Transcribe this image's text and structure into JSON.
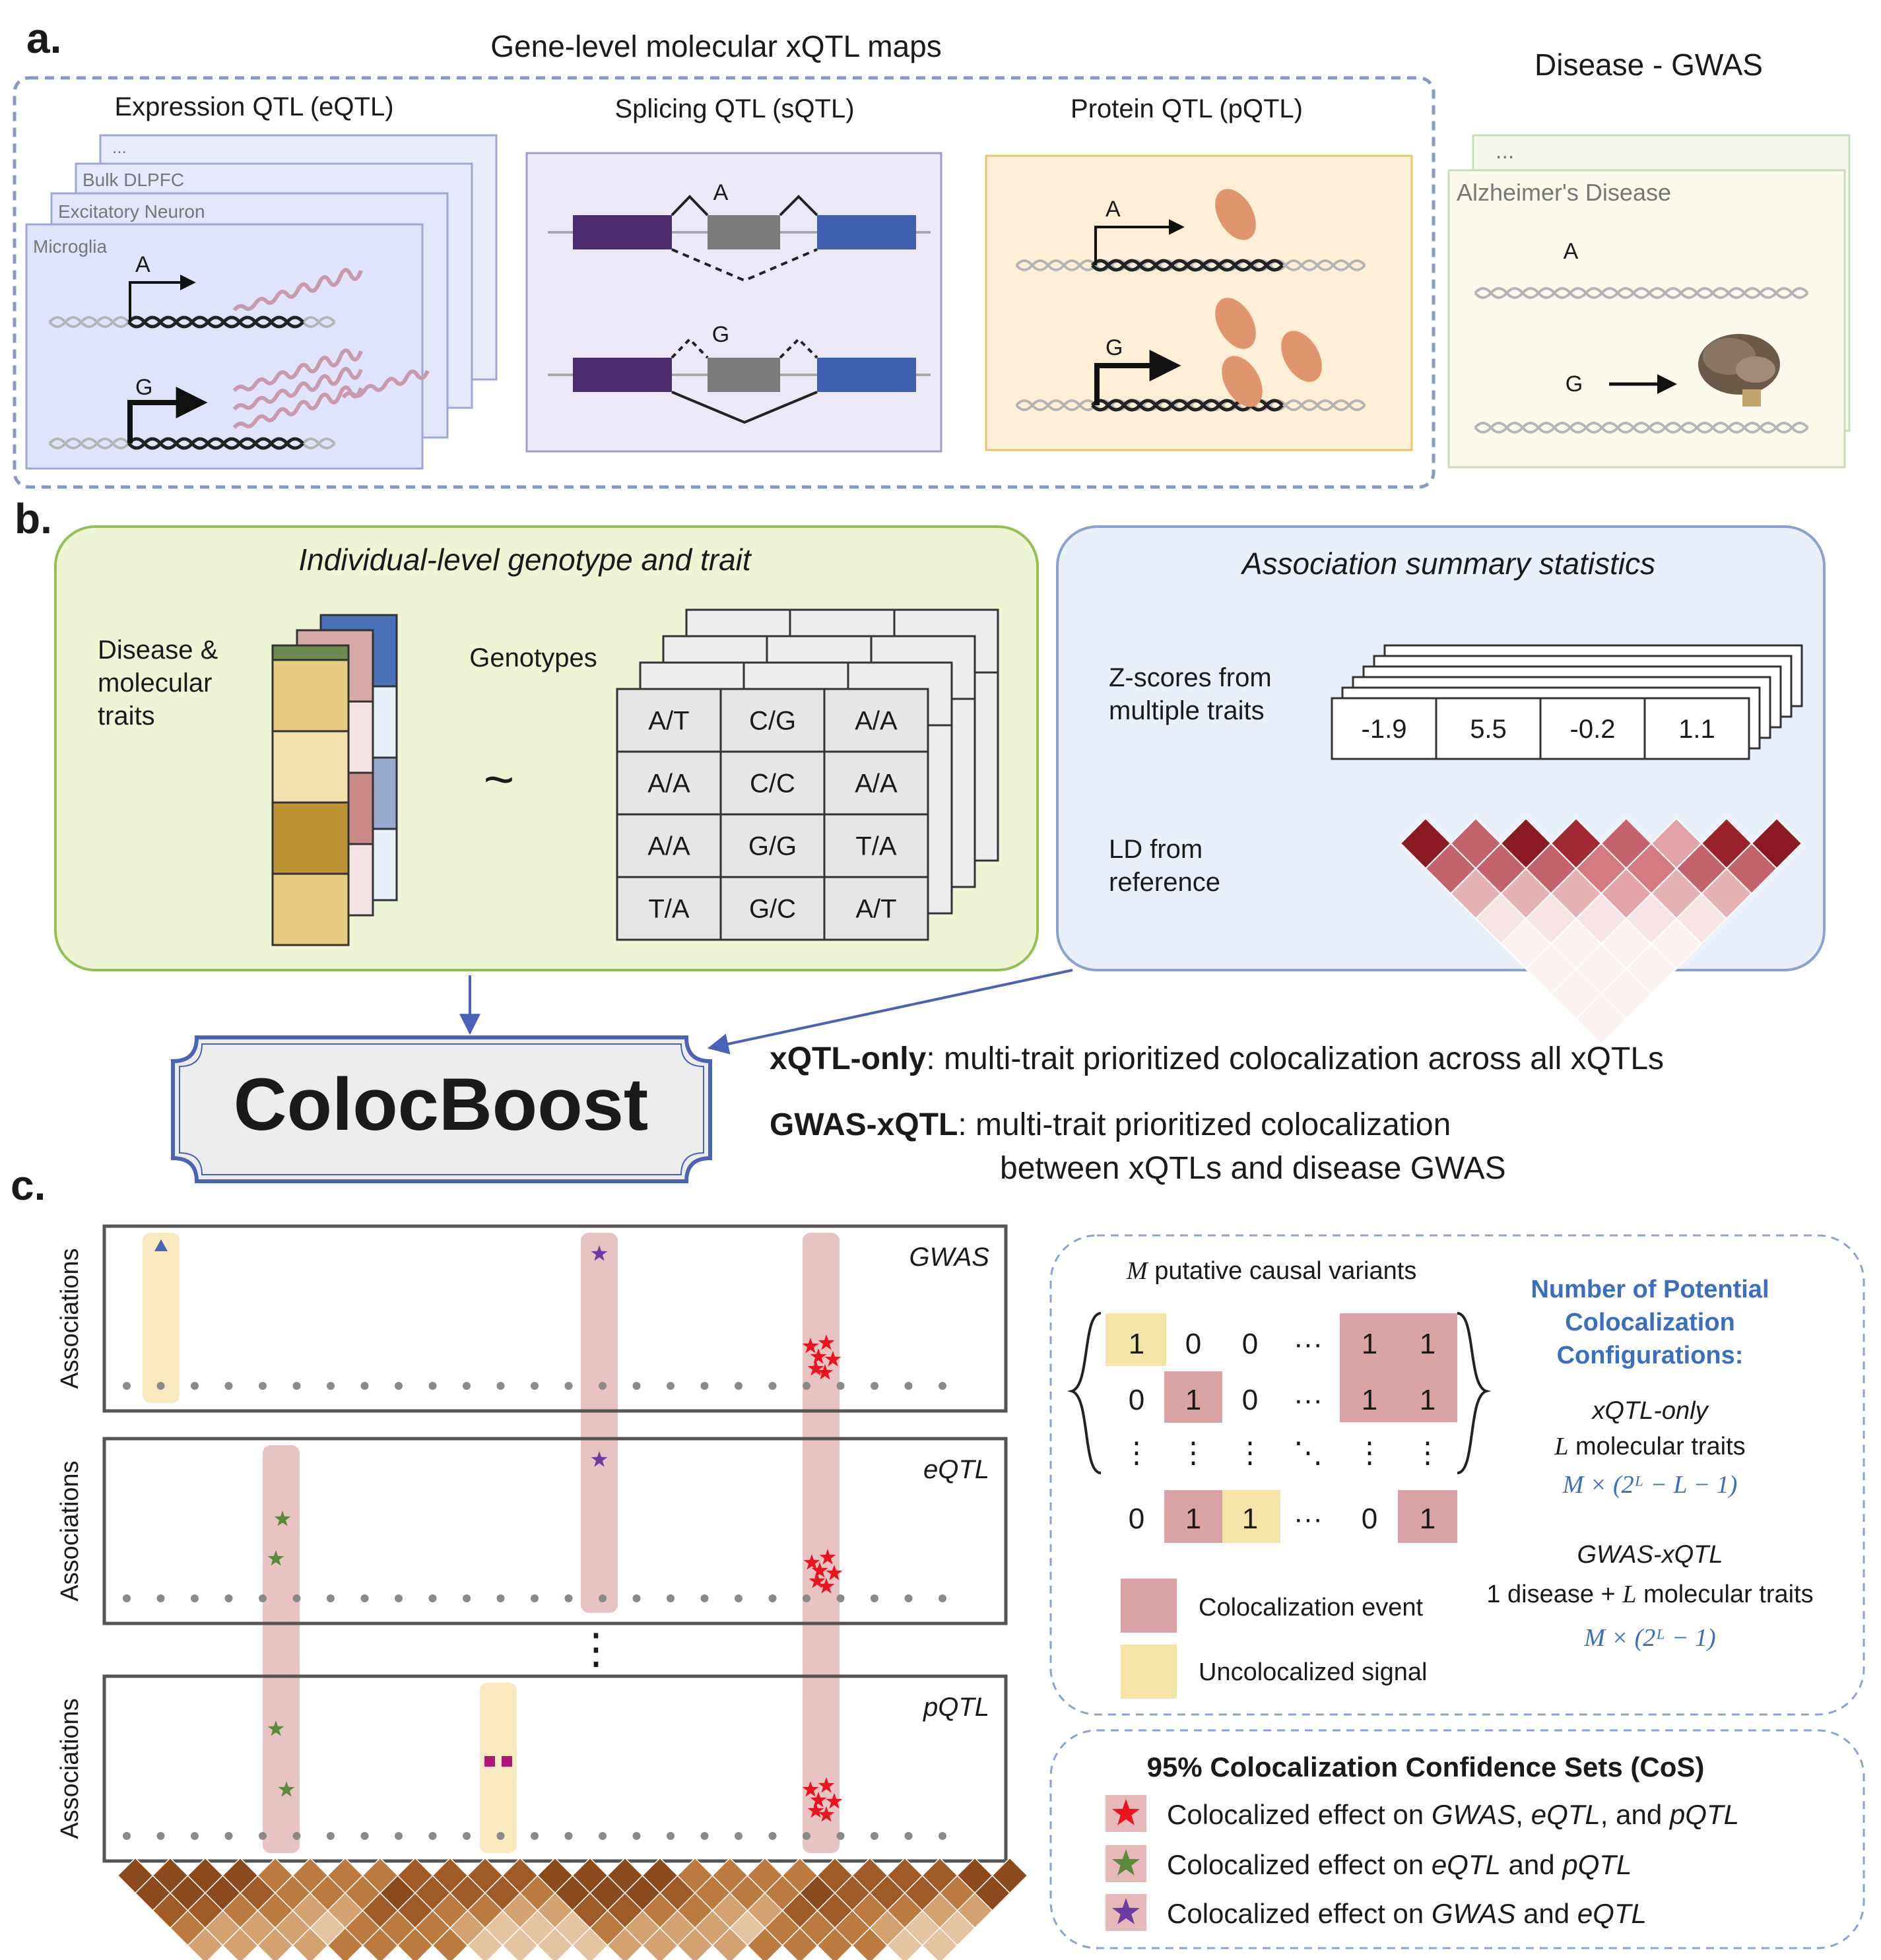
{
  "panel_a": {
    "letter": "a.",
    "title": "Gene-level molecular xQTL maps",
    "eqtl": {
      "title": "Expression QTL (eQTL)",
      "stack": [
        "...",
        "Bulk DLPFC",
        "Excitatory Neuron",
        "Microglia"
      ]
    },
    "sqtl": {
      "title": "Splicing QTL (sQTL)"
    },
    "pqtl": {
      "title": "Protein QTL (pQTL)"
    },
    "gwas": {
      "title": "Disease - GWAS",
      "stack": [
        "...",
        "Alzheimer's Disease"
      ]
    },
    "allele_a": "A",
    "allele_g": "G"
  },
  "panel_b": {
    "letter": "b.",
    "left_title": "Individual-level genotype and trait",
    "traits_label_lines": [
      "Disease &",
      "molecular",
      "traits"
    ],
    "tilde": "~",
    "genotypes_label": "Genotypes",
    "genotype_table": [
      [
        "A/T",
        "C/G",
        "A/A"
      ],
      [
        "A/A",
        "C/C",
        "A/A"
      ],
      [
        "A/A",
        "G/G",
        "T/A"
      ],
      [
        "T/A",
        "G/C",
        "A/T"
      ]
    ],
    "right_title": "Association summary statistics",
    "zscore_label_lines": [
      "Z-scores from",
      "multiple traits"
    ],
    "zscores": [
      "-1.9",
      "5.5",
      "-0.2",
      "1.1"
    ],
    "ld_label_lines": [
      "LD from",
      "reference"
    ],
    "tool_name": "ColocBoost",
    "mode1_name": "xQTL-only",
    "mode1_desc": ": multi-trait prioritized colocalization across all xQTLs",
    "mode2_name": "GWAS-xQTL",
    "mode2_desc_line1": ": multi-trait prioritized colocalization",
    "mode2_desc_line2": "between xQTLs and disease GWAS"
  },
  "panel_c": {
    "letter": "c.",
    "y_label": "Associations",
    "tracks": [
      "GWAS",
      "eQTL",
      "pQTL"
    ],
    "vdots": "⋮",
    "matrix_title_var": "M",
    "matrix_title": "putative causal variants",
    "matrix_rows": [
      [
        "1",
        "0",
        "0",
        "···",
        "1",
        "1"
      ],
      [
        "0",
        "1",
        "0",
        "···",
        "1",
        "1"
      ],
      [
        "⋮",
        "⋮",
        "⋮",
        "⋱",
        "⋮",
        "⋮"
      ],
      [
        "0",
        "1",
        "1",
        "···",
        "0",
        "1"
      ]
    ],
    "legend_coloc": "Colocalization event",
    "legend_uncoloc": "Uncolocalized signal",
    "config_title_lines": [
      "Number of Potential",
      "Colocalization",
      "Configurations:"
    ],
    "xqtl_only_label": "xQTL-only",
    "xqtl_only_var": "L",
    "xqtl_only_desc": "molecular traits",
    "xqtl_only_formula": "M × (2ᴸ − L − 1)",
    "gwas_xqtl_label": "GWAS-xQTL",
    "gwas_xqtl_desc_pre": "1 disease +",
    "gwas_xqtl_var": "L",
    "gwas_xqtl_desc_post": "molecular traits",
    "gwas_xqtl_formula": "M × (2ᴸ − 1)",
    "cos_title": "95% Colocalization Confidence Sets (CoS)",
    "cos_items": [
      {
        "pre": "Colocalized effect on ",
        "a": "GWAS",
        "mid1": ", ",
        "b": "eQTL",
        "mid2": ", and ",
        "c": "pQTL",
        "color": "#e8141e"
      },
      {
        "pre": "Colocalized effect on ",
        "a": "eQTL",
        "mid1": " and ",
        "b": "pQTL",
        "mid2": "",
        "c": "",
        "color": "#5b8a3c"
      },
      {
        "pre": "Colocalized effect on ",
        "a": "GWAS",
        "mid1": " and ",
        "b": "eQTL",
        "mid2": "",
        "c": "",
        "color": "#6a3ea1"
      }
    ]
  },
  "colors": {
    "dashed_blue": "#8896c8",
    "coloc_pink": "#d9a3a6",
    "uncoloc_yellow": "#f5e4a8",
    "config_blue": "#3a6fc0",
    "green_box": "#eef5d4",
    "blue_box": "#eaf0f9"
  }
}
